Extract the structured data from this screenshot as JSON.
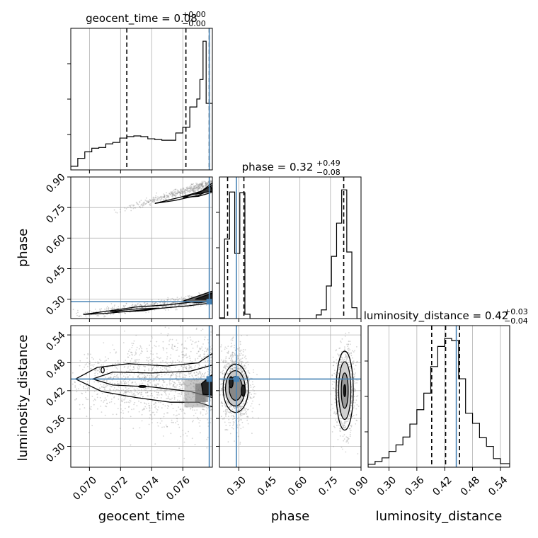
{
  "chart_data": {
    "type": "corner",
    "parameters": [
      "geocent_time",
      "phase",
      "luminosity_distance"
    ],
    "axis_labels": [
      "geocent_time",
      "phase",
      "luminosity_distance"
    ],
    "truth": {
      "geocent_time": 0.0777,
      "phase": 0.288,
      "luminosity_distance": 0.445
    },
    "truth_color": "#4682b4",
    "ranges": {
      "geocent_time": [
        0.0688,
        0.0779
      ],
      "phase": [
        0.205,
        0.9
      ],
      "luminosity_distance": [
        0.255,
        0.56
      ]
    },
    "ticks": {
      "geocent_time": [
        {
          "v": 0.07,
          "label": "0.070"
        },
        {
          "v": 0.072,
          "label": "0.072"
        },
        {
          "v": 0.074,
          "label": "0.074"
        },
        {
          "v": 0.076,
          "label": "0.076"
        }
      ],
      "phase": [
        {
          "v": 0.3,
          "label": "0.30"
        },
        {
          "v": 0.45,
          "label": "0.45"
        },
        {
          "v": 0.6,
          "label": "0.60"
        },
        {
          "v": 0.75,
          "label": "0.75"
        },
        {
          "v": 0.9,
          "label": "0.90"
        }
      ],
      "luminosity_distance": [
        {
          "v": 0.3,
          "label": "0.30"
        },
        {
          "v": 0.36,
          "label": "0.36"
        },
        {
          "v": 0.42,
          "label": "0.42"
        },
        {
          "v": 0.48,
          "label": "0.48"
        },
        {
          "v": 0.54,
          "label": "0.54"
        }
      ]
    },
    "titles": [
      {
        "name": "geocent_time",
        "median": "0.08",
        "plus": "+0.00",
        "minus": "−0.00"
      },
      {
        "name": "phase",
        "median": "0.32",
        "plus": "+0.49",
        "minus": "−0.08"
      },
      {
        "name": "luminosity_distance",
        "median": "0.42",
        "plus": "+0.03",
        "minus": "−0.04"
      }
    ],
    "quantiles": {
      "geocent_time": [
        0.0724,
        0.0762,
        0.0777
      ],
      "phase": [
        0.245,
        0.325,
        0.815
      ],
      "luminosity_distance": [
        0.392,
        0.422,
        0.452
      ]
    },
    "histograms": {
      "geocent_time": {
        "edges": [
          0.0688,
          0.06925,
          0.0697,
          0.07015,
          0.0706,
          0.07105,
          0.0715,
          0.07195,
          0.0724,
          0.07285,
          0.0733,
          0.07375,
          0.0742,
          0.07465,
          0.0751,
          0.07555,
          0.076,
          0.07645,
          0.0769,
          0.0771,
          0.0773,
          0.0775,
          0.0777,
          0.0779
        ],
        "counts": [
          0.5,
          1.6,
          2.5,
          3.0,
          3.1,
          3.6,
          3.8,
          4.4,
          4.6,
          4.7,
          4.6,
          4.3,
          4.2,
          4.1,
          4.1,
          5.1,
          5.9,
          8.7,
          9.8,
          12.5,
          17.8,
          9.2,
          9.2
        ]
      },
      "phase": {
        "edges": [
          0.205,
          0.23,
          0.255,
          0.28,
          0.305,
          0.33,
          0.355,
          0.38,
          0.405,
          0.68,
          0.705,
          0.73,
          0.755,
          0.78,
          0.805,
          0.83,
          0.855,
          0.88,
          0.9
        ],
        "counts": [
          0.1,
          11.0,
          17.5,
          9.0,
          17.4,
          0.6,
          0.0,
          0.0,
          0.0,
          0.5,
          1.2,
          4.5,
          8.6,
          13.2,
          17.8,
          9.2,
          1.5,
          0.0
        ]
      },
      "luminosity_distance": {
        "edges": [
          0.255,
          0.27,
          0.285,
          0.3,
          0.315,
          0.33,
          0.345,
          0.36,
          0.375,
          0.39,
          0.405,
          0.42,
          0.435,
          0.45,
          0.465,
          0.48,
          0.495,
          0.51,
          0.525,
          0.54,
          0.56
        ],
        "counts": [
          0.4,
          0.8,
          1.3,
          2.2,
          3.1,
          4.2,
          6.0,
          8.0,
          10.3,
          14.0,
          16.8,
          17.9,
          17.6,
          12.3,
          7.5,
          6.1,
          4.1,
          2.9,
          1.2,
          0.5
        ]
      }
    }
  }
}
